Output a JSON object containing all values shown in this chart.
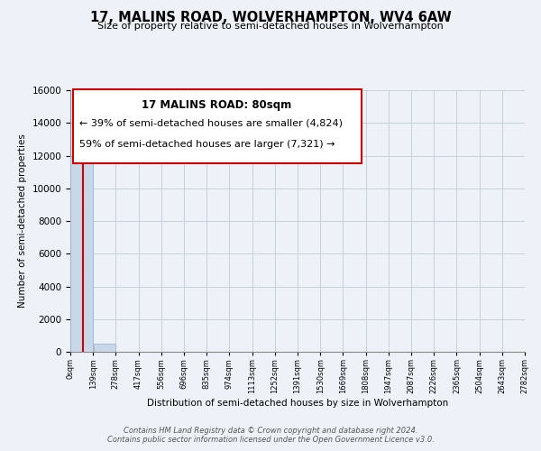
{
  "title": "17, MALINS ROAD, WOLVERHAMPTON, WV4 6AW",
  "subtitle": "Size of property relative to semi-detached houses in Wolverhampton",
  "xlabel": "Distribution of semi-detached houses by size in Wolverhampton",
  "ylabel": "Number of semi-detached properties",
  "bar_edges": [
    0,
    139,
    278,
    417,
    556,
    696,
    835,
    974,
    1113,
    1252,
    1391,
    1530,
    1669,
    1808,
    1947,
    2087,
    2226,
    2365,
    2504,
    2643,
    2782
  ],
  "bar_heights": [
    12000,
    500,
    0,
    0,
    0,
    0,
    0,
    0,
    0,
    0,
    0,
    0,
    0,
    0,
    0,
    0,
    0,
    0,
    0,
    0
  ],
  "bar_color": "#c8d8e8",
  "bar_edgecolor": "#a0b8d0",
  "property_value": 80,
  "property_line_color": "#cc0000",
  "annotation_box_edgecolor": "#cc0000",
  "annotation_text_line1": "17 MALINS ROAD: 80sqm",
  "annotation_text_line2": "← 39% of semi-detached houses are smaller (4,824)",
  "annotation_text_line3": "59% of semi-detached houses are larger (7,321) →",
  "ylim": [
    0,
    16000
  ],
  "yticks": [
    0,
    2000,
    4000,
    6000,
    8000,
    10000,
    12000,
    14000,
    16000
  ],
  "xtick_labels": [
    "0sqm",
    "139sqm",
    "278sqm",
    "417sqm",
    "556sqm",
    "696sqm",
    "835sqm",
    "974sqm",
    "1113sqm",
    "1252sqm",
    "1391sqm",
    "1530sqm",
    "1669sqm",
    "1808sqm",
    "1947sqm",
    "2087sqm",
    "2226sqm",
    "2365sqm",
    "2504sqm",
    "2643sqm",
    "2782sqm"
  ],
  "grid_color": "#c0ccd8",
  "background_color": "#eef2f8",
  "footer_line1": "Contains HM Land Registry data © Crown copyright and database right 2024.",
  "footer_line2": "Contains public sector information licensed under the Open Government Licence v3.0."
}
